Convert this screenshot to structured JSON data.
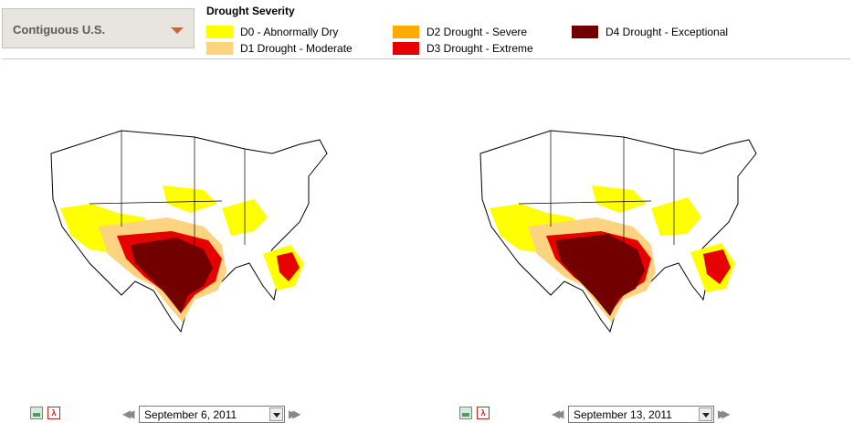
{
  "region_selector": {
    "label": "Contiguous U.S.",
    "caret_icon": "chevron-down-icon"
  },
  "legend": {
    "title": "Drought Severity",
    "items": [
      {
        "label": "D0 - Abnormally Dry",
        "color": "#ffff00"
      },
      {
        "label": "D1 Drought - Moderate",
        "color": "#fcd37f"
      },
      {
        "label": "D2 Drought - Severe",
        "color": "#ffaa00"
      },
      {
        "label": "D3 Drought - Extreme",
        "color": "#e60000"
      },
      {
        "label": "D4 Drought - Exceptional",
        "color": "#730000"
      }
    ]
  },
  "maps": [
    {
      "date": "September 6, 2011",
      "image_icon": "image-icon",
      "pdf_icon": "pdf-icon",
      "prev_icon": "rewind-icon",
      "next_icon": "fast-forward-icon"
    },
    {
      "date": "September 13, 2011",
      "image_icon": "image-icon",
      "pdf_icon": "pdf-icon",
      "prev_icon": "rewind-icon",
      "next_icon": "fast-forward-icon"
    }
  ]
}
